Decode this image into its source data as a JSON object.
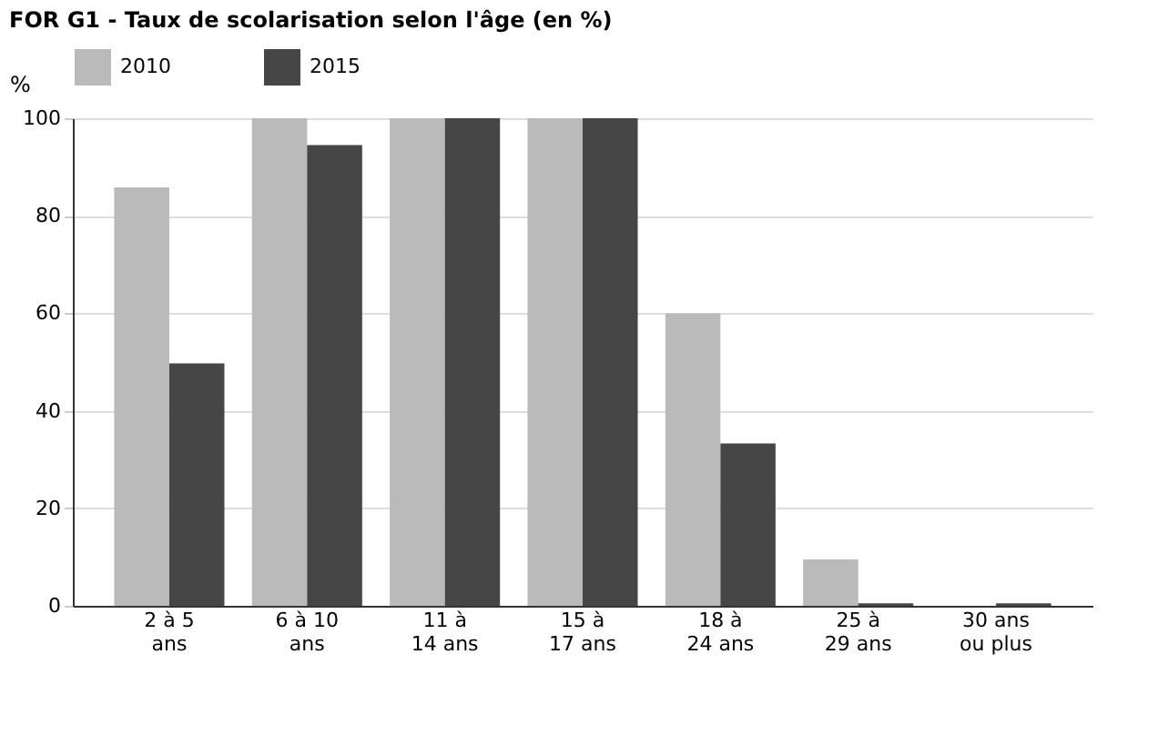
{
  "chart_data": {
    "type": "bar",
    "title": "FOR G1 - Taux de scolarisation selon l'âge (en %)",
    "ylabel": "%",
    "categories": [
      "2 à 5\nans",
      "6 à 10\nans",
      "11 à\n14 ans",
      "15 à\n17 ans",
      "18 à\n24 ans",
      "25 à\n29 ans",
      "30 ans\nou plus"
    ],
    "series": [
      {
        "name": "2010",
        "color": "#bababa",
        "values": [
          85.8,
          100,
          100,
          100,
          60,
          9.5,
          null
        ]
      },
      {
        "name": "2015",
        "color": "#464646",
        "values": [
          49.7,
          94.5,
          100,
          100,
          33.3,
          0.5,
          0.5
        ]
      }
    ],
    "ylim": [
      0,
      100
    ],
    "yticks": [
      0,
      20,
      40,
      60,
      80,
      100
    ],
    "grid": "y",
    "legend": "top"
  }
}
